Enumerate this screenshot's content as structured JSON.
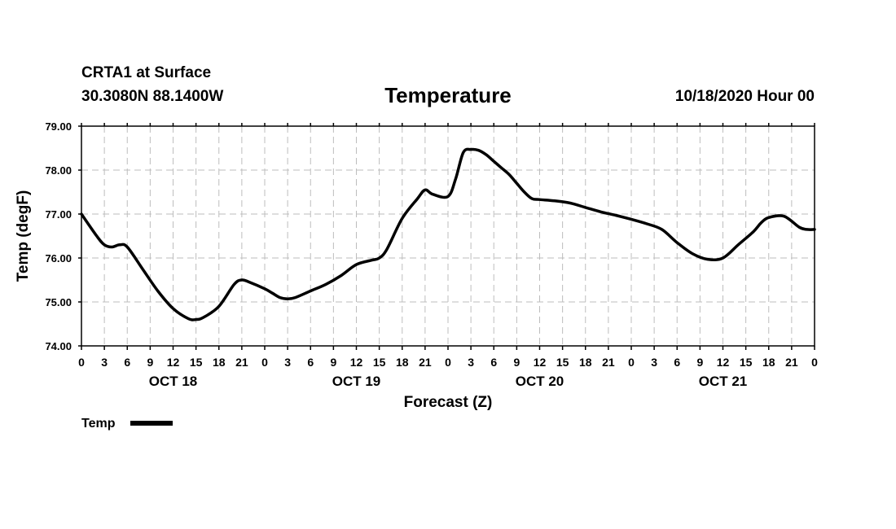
{
  "header": {
    "station": "CRTA1 at Surface",
    "location": "30.3080N 88.1400W",
    "title": "Temperature",
    "run": "10/18/2020 Hour 00"
  },
  "legend": {
    "label": "Temp",
    "color": "#000000"
  },
  "chart_data": {
    "type": "line",
    "title": "Temperature",
    "xlabel": "Forecast (Z)",
    "ylabel": "Temp (degF)",
    "xlim": [
      0,
      96
    ],
    "ylim": [
      74,
      79
    ],
    "y_ticks": [
      "74.00",
      "75.00",
      "76.00",
      "77.00",
      "78.00",
      "79.00"
    ],
    "x_tick_hours": [
      0,
      3,
      6,
      9,
      12,
      15,
      18,
      21,
      24,
      27,
      30,
      33,
      36,
      39,
      42,
      45,
      48,
      51,
      54,
      57,
      60,
      63,
      66,
      69,
      72,
      75,
      78,
      81,
      84,
      87,
      90,
      93,
      96
    ],
    "x_tick_labels": [
      "0",
      "3",
      "6",
      "9",
      "12",
      "15",
      "18",
      "21",
      "0",
      "3",
      "6",
      "9",
      "12",
      "15",
      "18",
      "21",
      "0",
      "3",
      "6",
      "9",
      "12",
      "15",
      "18",
      "21",
      "0",
      "3",
      "6",
      "9",
      "12",
      "15",
      "18",
      "21",
      "0"
    ],
    "day_labels": [
      {
        "hour": 12,
        "label": "OCT 18"
      },
      {
        "hour": 36,
        "label": "OCT 19"
      },
      {
        "hour": 60,
        "label": "OCT 20"
      },
      {
        "hour": 84,
        "label": "OCT 21"
      }
    ],
    "series": [
      {
        "name": "Temp",
        "color": "#000000",
        "x": [
          0,
          2,
          3,
          4,
          5,
          6,
          8,
          10,
          12,
          14,
          15,
          16,
          18,
          20,
          21,
          22,
          24,
          25,
          26,
          27,
          28,
          30,
          32,
          34,
          36,
          38,
          39,
          40,
          42,
          44,
          45,
          46,
          48,
          49,
          50,
          51,
          52,
          53,
          54,
          55,
          56,
          57,
          58,
          59,
          60,
          62,
          64,
          66,
          68,
          70,
          72,
          74,
          76,
          78,
          80,
          82,
          84,
          86,
          88,
          89,
          90,
          92,
          94,
          95,
          96
        ],
        "y": [
          77.0,
          76.5,
          76.3,
          76.25,
          76.3,
          76.25,
          75.75,
          75.25,
          74.85,
          74.62,
          74.6,
          74.65,
          74.9,
          75.4,
          75.5,
          75.45,
          75.3,
          75.2,
          75.1,
          75.07,
          75.1,
          75.25,
          75.4,
          75.6,
          75.85,
          75.95,
          76.0,
          76.2,
          76.9,
          77.35,
          77.55,
          77.45,
          77.4,
          77.8,
          78.4,
          78.47,
          78.45,
          78.35,
          78.2,
          78.05,
          77.9,
          77.7,
          77.5,
          77.35,
          77.33,
          77.3,
          77.25,
          77.15,
          77.05,
          76.97,
          76.88,
          76.78,
          76.65,
          76.35,
          76.1,
          75.97,
          76.0,
          76.3,
          76.6,
          76.8,
          76.92,
          76.95,
          76.7,
          76.65,
          76.65
        ]
      }
    ]
  }
}
